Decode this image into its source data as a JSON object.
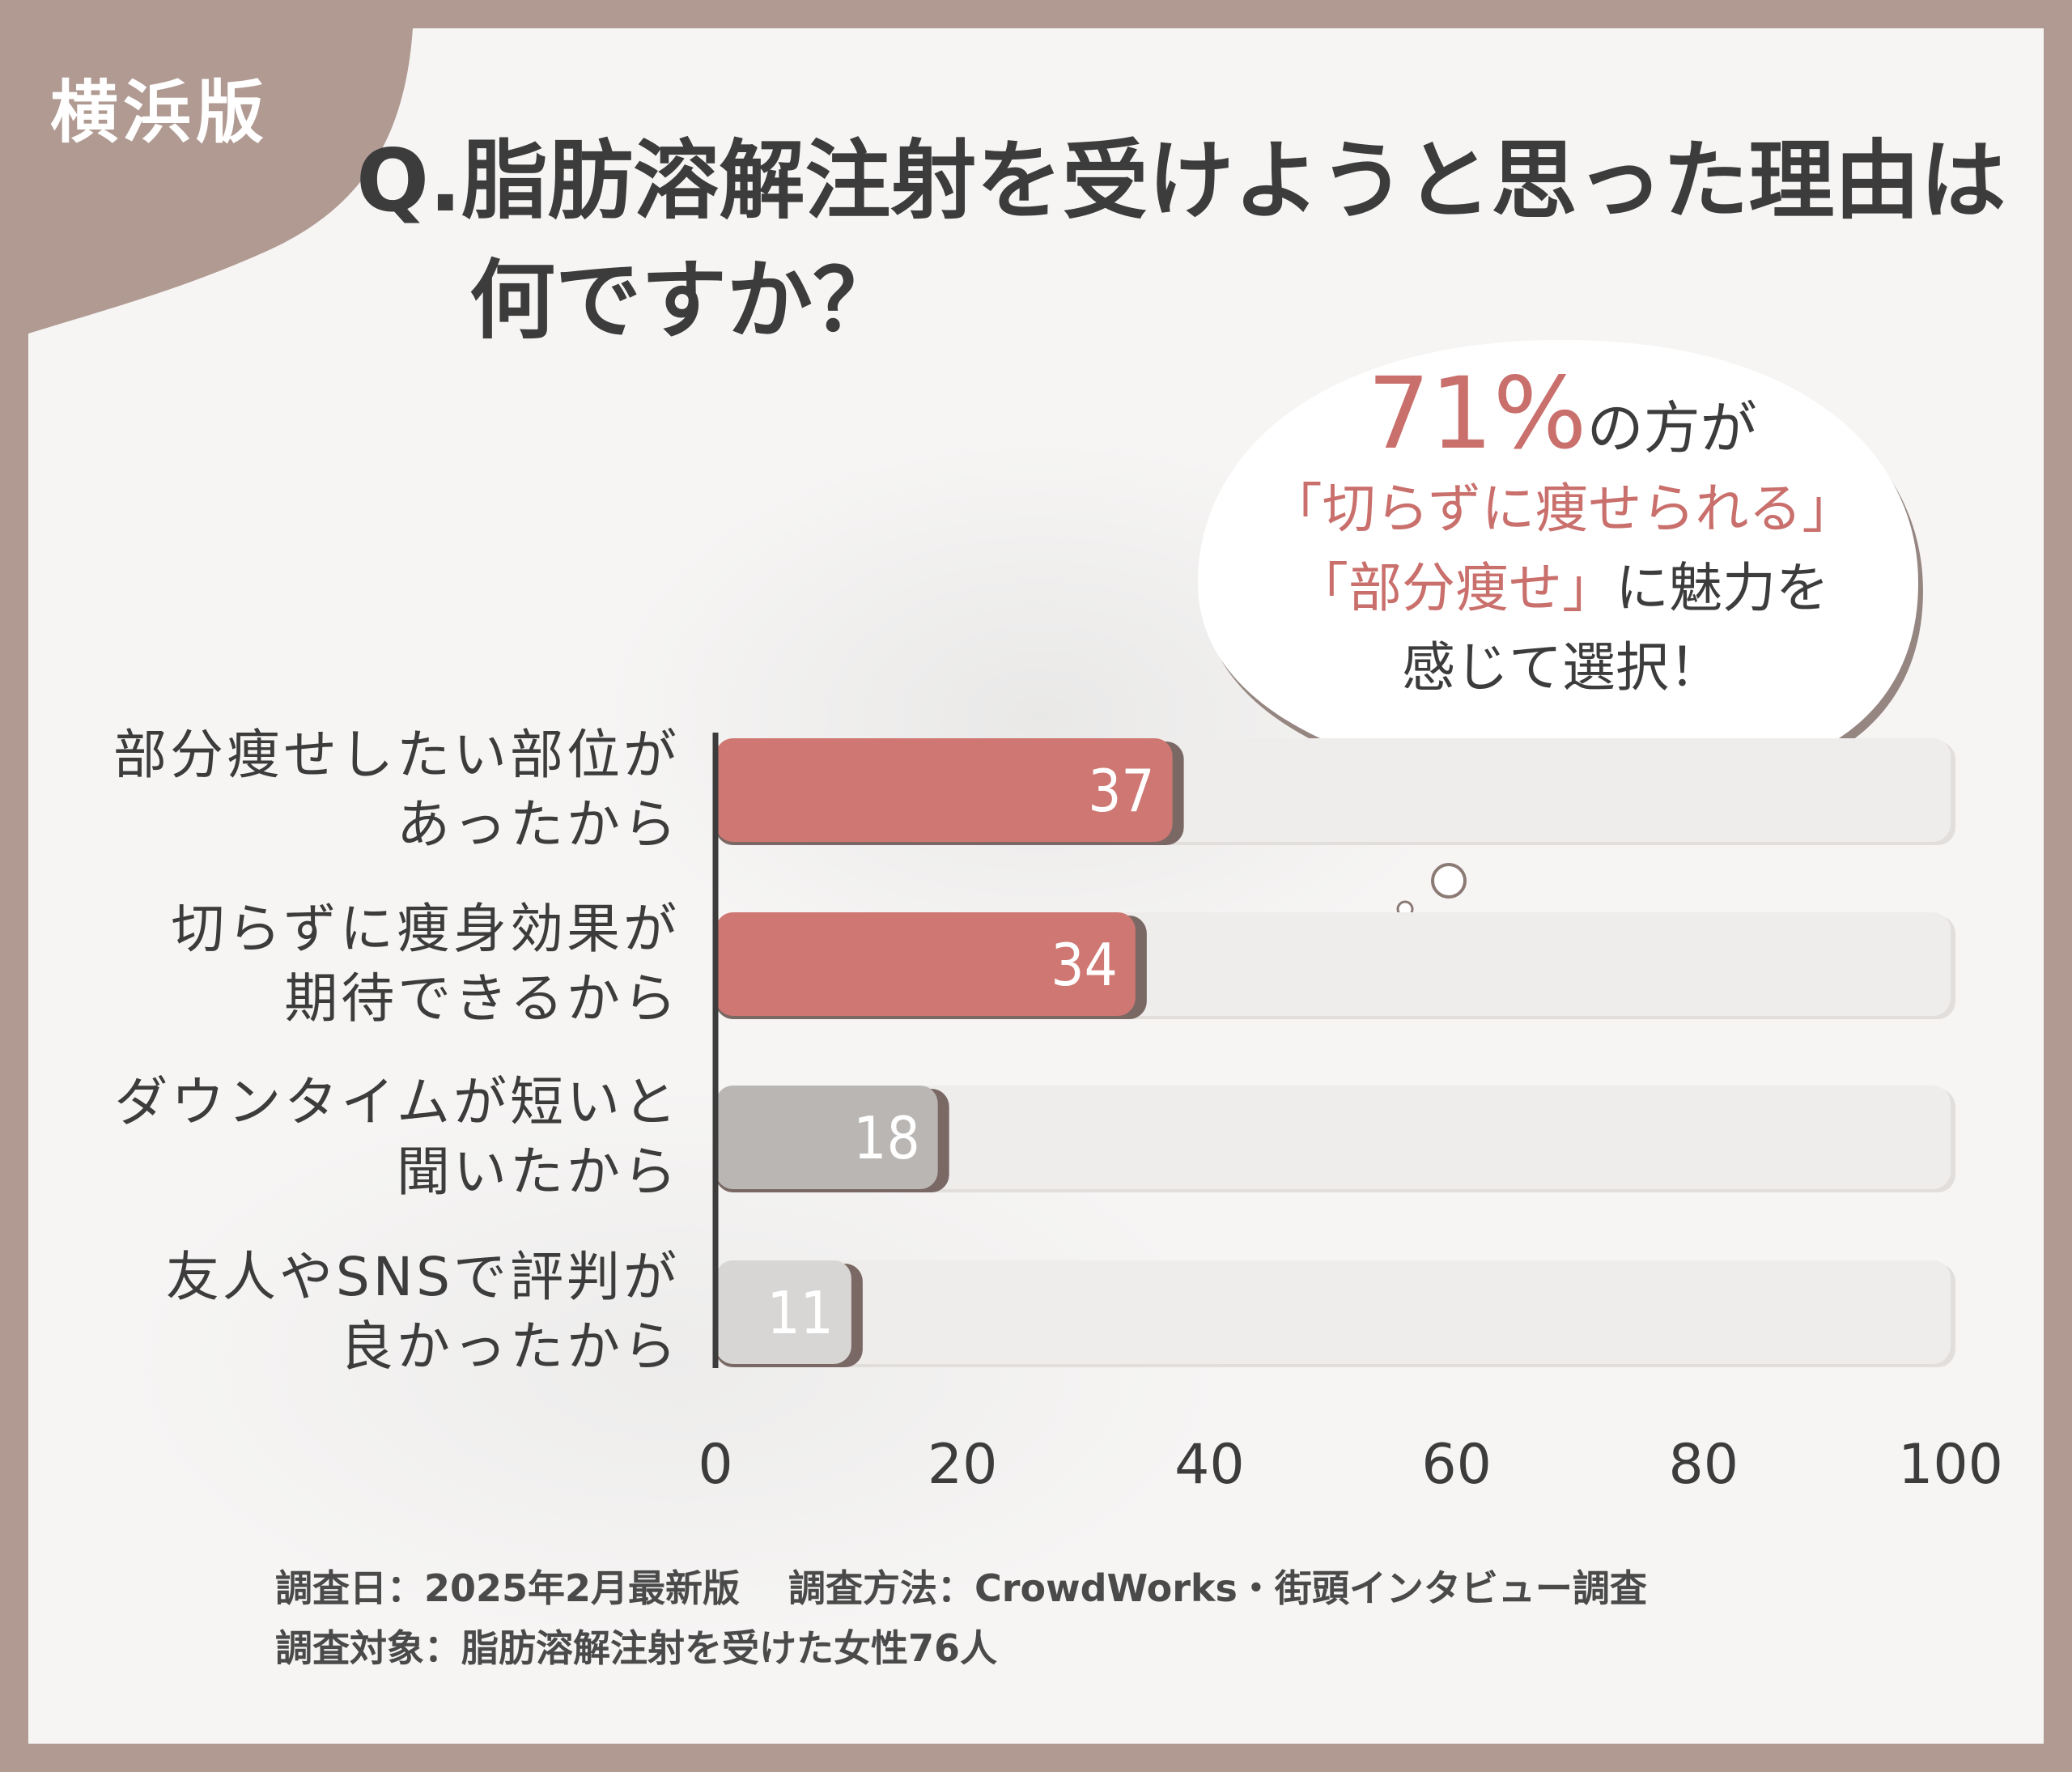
{
  "badge": {
    "label": "横浜版"
  },
  "title": {
    "line1": "Q.脂肪溶解注射を受けようと思った理由は",
    "line2": "何ですか？"
  },
  "callout": {
    "percent": "71%",
    "percent_suffix": "の方が",
    "line2": "「切らずに痩せられる」",
    "line3_highlight": "「部分痩せ」",
    "line3_rest": "に魅力を",
    "line4": "感じて選択！"
  },
  "chart_data": {
    "type": "bar",
    "orientation": "horizontal",
    "categories": [
      [
        "部分痩せしたい部位が",
        "あったから"
      ],
      [
        "切らずに痩身効果が",
        "期待できるから"
      ],
      [
        "ダウンタイムが短いと",
        "聞いたから"
      ],
      [
        "友人やSNSで評判が",
        "良かったから"
      ]
    ],
    "values": [
      37,
      34,
      18,
      11
    ],
    "value_labels": [
      "37",
      "34",
      "18",
      "11"
    ],
    "bar_colors": [
      "#cf7772",
      "#cf7772",
      "#b9b6b4",
      "#d8d6d5"
    ],
    "xlim": [
      0,
      100
    ],
    "xticks": [
      "0",
      "20",
      "40",
      "60",
      "80",
      "100"
    ],
    "grid": false
  },
  "footer": {
    "date": "調査日：2025年2月最新版",
    "method": "調査方法：CrowdWorks・街頭インタビュー調査",
    "target": "調査対象：脂肪溶解注射を受けた女性76人"
  },
  "colors": {
    "frame": "#b09a92",
    "card": "#f6f5f4",
    "accent": "#c96f6c",
    "text": "#3c3c3c"
  }
}
